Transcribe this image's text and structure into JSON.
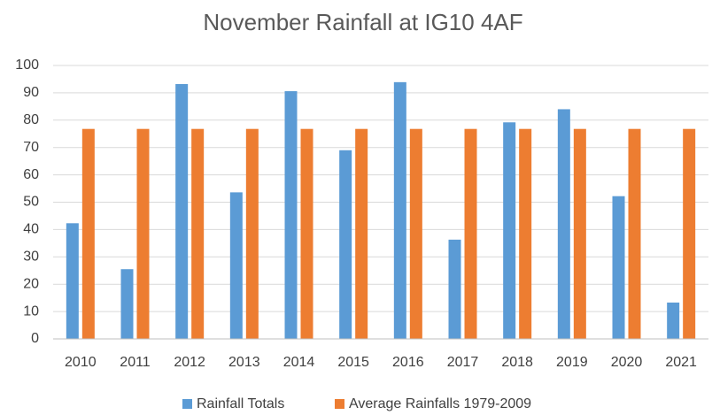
{
  "chart_data": {
    "type": "bar",
    "title": "November Rainfall at IG10 4AF",
    "categories": [
      "2010",
      "2011",
      "2012",
      "2013",
      "2014",
      "2015",
      "2016",
      "2017",
      "2018",
      "2019",
      "2020",
      "2021"
    ],
    "series": [
      {
        "name": "Rainfall Totals",
        "color": "#5b9bd5",
        "values": [
          42.3,
          25.5,
          93.2,
          53.6,
          90.6,
          69,
          93.9,
          36.3,
          79.2,
          84,
          52.2,
          13.3
        ]
      },
      {
        "name": "Average Rainfalls 1979-2009",
        "color": "#ed7d31",
        "values": [
          76.8,
          76.8,
          76.8,
          76.8,
          76.8,
          76.8,
          76.8,
          76.8,
          76.8,
          76.8,
          76.8,
          76.8
        ]
      }
    ],
    "ylim": [
      0,
      100
    ],
    "yticks": [
      0,
      10,
      20,
      30,
      40,
      50,
      60,
      70,
      80,
      90,
      100
    ],
    "grid": true,
    "legend": "bottom"
  }
}
